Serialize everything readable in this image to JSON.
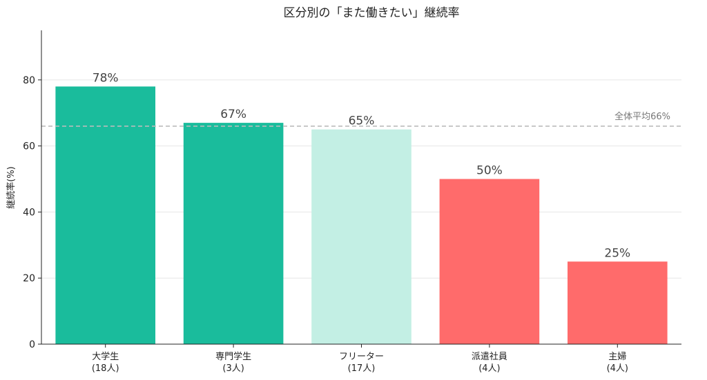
{
  "chart_data": {
    "type": "bar",
    "title": "区分別の「また働きたい」継続率",
    "ylabel": "継続率(%)",
    "xlabel": "",
    "ylim": [
      0,
      95
    ],
    "yticks": [
      0,
      20,
      40,
      60,
      80
    ],
    "grid": "horizontal",
    "categories": [
      "大学生",
      "専門学生",
      "フリーター",
      "派遣社員",
      "主婦"
    ],
    "counts": [
      "(18人)",
      "(3人)",
      "(17人)",
      "(4人)",
      "(4人)"
    ],
    "values": [
      78,
      67,
      65,
      50,
      25
    ],
    "value_labels": [
      "78%",
      "67%",
      "65%",
      "50%",
      "25%"
    ],
    "colors": [
      "#1abc9c",
      "#1abc9c",
      "#c3efe4",
      "#ff6b6b",
      "#ff6b6b"
    ],
    "average": {
      "value": 66,
      "label": "全体平均66%",
      "color": "#bbbbbb"
    }
  }
}
